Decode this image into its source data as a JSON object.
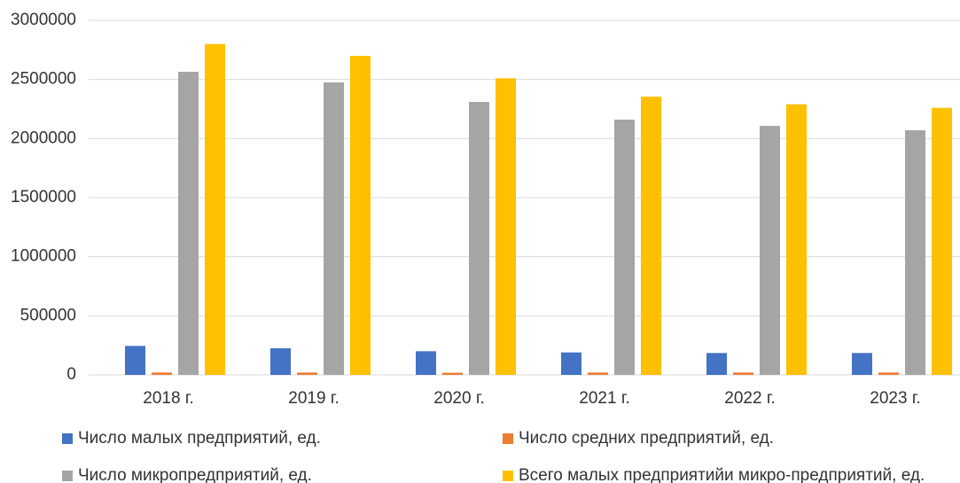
{
  "chart_data": {
    "type": "bar",
    "categories": [
      "2018 г.",
      "2019 г.",
      "2020 г.",
      "2021 г.",
      "2022 г.",
      "2023 г."
    ],
    "series": [
      {
        "name": "Число малых предприятий, ед.",
        "color": "#4472c4",
        "values": [
          245000,
          225000,
          200000,
          190000,
          185000,
          185000
        ]
      },
      {
        "name": "Число средних предприятий, ед.",
        "color": "#ed7d31",
        "values": [
          20000,
          20000,
          18000,
          20000,
          20000,
          20000
        ]
      },
      {
        "name": "Число микропредприятий, ед.",
        "color": "#a5a5a5",
        "values": [
          2565000,
          2475000,
          2310000,
          2160000,
          2107000,
          2070000
        ]
      },
      {
        "name": "Всего малых предприятийи микро-предприятий, ед.",
        "color": "#ffc000",
        "values": [
          2800000,
          2700000,
          2510000,
          2355000,
          2290000,
          2260000
        ]
      }
    ],
    "ylim": [
      0,
      3000000
    ],
    "yticks": [
      0,
      500000,
      1000000,
      1500000,
      2000000,
      2500000,
      3000000
    ],
    "grid": true,
    "legend": "bottom"
  }
}
